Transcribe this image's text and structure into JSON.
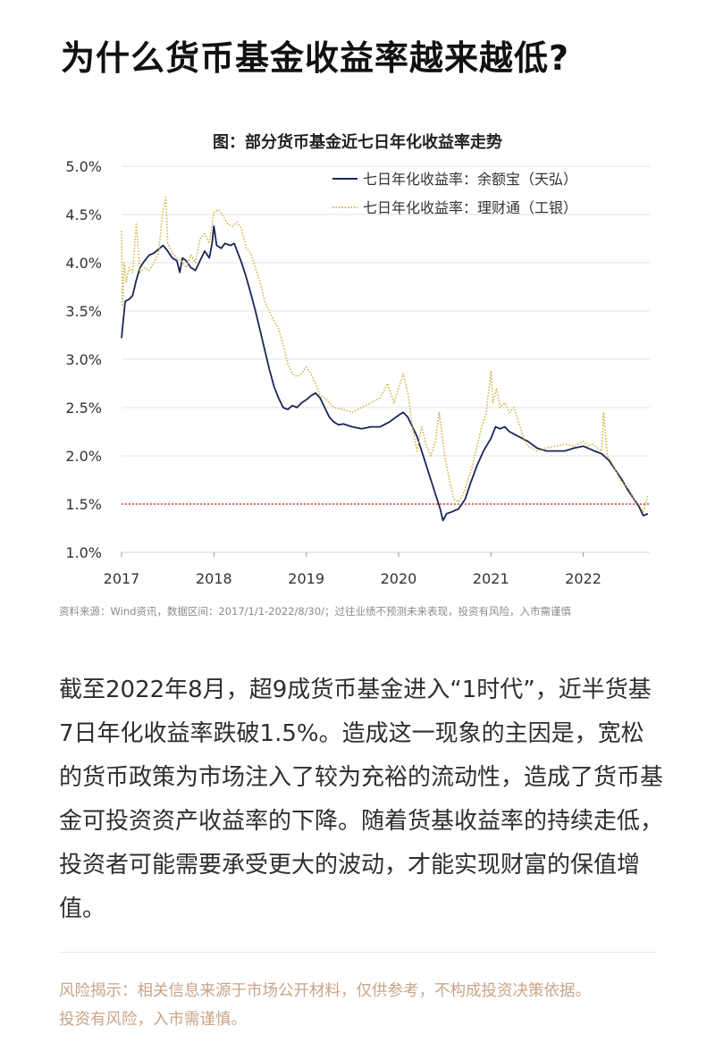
{
  "headline": "为什么货币基金收益率越来越低?",
  "source_note": "资料来源：Wind资讯，数据区间：2017/1/1-2022/8/30/；过往业绩不预测未来表现，投资有风险，入市需谨慎",
  "body_text": "截至2022年8月，超9成货币基金进入“1时代”，近半货基7日年化收益率跌破1.5%。造成这一现象的主因是，宽松的货币政策为市场注入了较为充裕的流动性，造成了货币基金可投资资产收益率的下降。随着货基收益率的持续走低，投资者可能需要承受更大的波动，才能实现财富的保值增值。",
  "risk_note": "风险揭示：相关信息来源于市场公开材料，仅供参考，不构成投资决策依据。投资有风险，入市需谨慎。",
  "chart_data": {
    "type": "line",
    "title": "图：部分货币基金近七日年化收益率走势",
    "xlabel": "",
    "ylabel": "",
    "xlim": [
      2017.0,
      2022.72
    ],
    "ylim": [
      1.0,
      5.0
    ],
    "x_ticks": [
      "2017",
      "2018",
      "2019",
      "2020",
      "2021",
      "2022"
    ],
    "y_ticks": [
      "5.0%",
      "4.5%",
      "4.0%",
      "3.5%",
      "3.0%",
      "2.5%",
      "2.0%",
      "1.5%",
      "1.0%"
    ],
    "grid": "horizontal",
    "legend_position": "top-right",
    "reference_line": {
      "value": 1.5,
      "color": "#cc2222",
      "style": "dotted"
    },
    "series": [
      {
        "name": "七日年化收益率：余额宝（天弘）",
        "color": "#1c2557",
        "style": "solid",
        "points": [
          [
            2017.0,
            3.22
          ],
          [
            2017.02,
            3.42
          ],
          [
            2017.04,
            3.6
          ],
          [
            2017.08,
            3.62
          ],
          [
            2017.12,
            3.66
          ],
          [
            2017.16,
            3.82
          ],
          [
            2017.2,
            3.95
          ],
          [
            2017.25,
            4.02
          ],
          [
            2017.3,
            4.08
          ],
          [
            2017.35,
            4.1
          ],
          [
            2017.4,
            4.14
          ],
          [
            2017.45,
            4.18
          ],
          [
            2017.5,
            4.12
          ],
          [
            2017.55,
            4.05
          ],
          [
            2017.6,
            4.02
          ],
          [
            2017.63,
            3.9
          ],
          [
            2017.66,
            4.05
          ],
          [
            2017.7,
            4.02
          ],
          [
            2017.75,
            3.95
          ],
          [
            2017.8,
            3.92
          ],
          [
            2017.85,
            4.02
          ],
          [
            2017.9,
            4.12
          ],
          [
            2017.95,
            4.05
          ],
          [
            2017.98,
            4.2
          ],
          [
            2018.0,
            4.38
          ],
          [
            2018.03,
            4.18
          ],
          [
            2018.08,
            4.15
          ],
          [
            2018.12,
            4.2
          ],
          [
            2018.18,
            4.18
          ],
          [
            2018.22,
            4.2
          ],
          [
            2018.26,
            4.1
          ],
          [
            2018.3,
            4.0
          ],
          [
            2018.35,
            3.85
          ],
          [
            2018.4,
            3.68
          ],
          [
            2018.45,
            3.5
          ],
          [
            2018.5,
            3.3
          ],
          [
            2018.55,
            3.1
          ],
          [
            2018.6,
            2.9
          ],
          [
            2018.65,
            2.72
          ],
          [
            2018.7,
            2.6
          ],
          [
            2018.75,
            2.5
          ],
          [
            2018.8,
            2.48
          ],
          [
            2018.85,
            2.52
          ],
          [
            2018.9,
            2.5
          ],
          [
            2018.95,
            2.55
          ],
          [
            2019.0,
            2.58
          ],
          [
            2019.05,
            2.62
          ],
          [
            2019.1,
            2.65
          ],
          [
            2019.15,
            2.6
          ],
          [
            2019.2,
            2.5
          ],
          [
            2019.25,
            2.4
          ],
          [
            2019.3,
            2.35
          ],
          [
            2019.35,
            2.32
          ],
          [
            2019.4,
            2.33
          ],
          [
            2019.5,
            2.3
          ],
          [
            2019.6,
            2.28
          ],
          [
            2019.7,
            2.3
          ],
          [
            2019.8,
            2.3
          ],
          [
            2019.9,
            2.35
          ],
          [
            2020.0,
            2.42
          ],
          [
            2020.05,
            2.45
          ],
          [
            2020.1,
            2.4
          ],
          [
            2020.15,
            2.3
          ],
          [
            2020.2,
            2.2
          ],
          [
            2020.25,
            2.05
          ],
          [
            2020.3,
            1.9
          ],
          [
            2020.35,
            1.75
          ],
          [
            2020.4,
            1.6
          ],
          [
            2020.45,
            1.45
          ],
          [
            2020.48,
            1.33
          ],
          [
            2020.52,
            1.4
          ],
          [
            2020.58,
            1.42
          ],
          [
            2020.65,
            1.45
          ],
          [
            2020.72,
            1.55
          ],
          [
            2020.78,
            1.72
          ],
          [
            2020.85,
            1.9
          ],
          [
            2020.92,
            2.05
          ],
          [
            2021.0,
            2.18
          ],
          [
            2021.05,
            2.3
          ],
          [
            2021.1,
            2.28
          ],
          [
            2021.15,
            2.3
          ],
          [
            2021.2,
            2.25
          ],
          [
            2021.3,
            2.2
          ],
          [
            2021.4,
            2.15
          ],
          [
            2021.5,
            2.08
          ],
          [
            2021.6,
            2.05
          ],
          [
            2021.7,
            2.05
          ],
          [
            2021.8,
            2.05
          ],
          [
            2021.9,
            2.08
          ],
          [
            2022.0,
            2.1
          ],
          [
            2022.05,
            2.08
          ],
          [
            2022.12,
            2.05
          ],
          [
            2022.2,
            2.02
          ],
          [
            2022.28,
            1.95
          ],
          [
            2022.35,
            1.85
          ],
          [
            2022.42,
            1.75
          ],
          [
            2022.48,
            1.65
          ],
          [
            2022.55,
            1.55
          ],
          [
            2022.6,
            1.48
          ],
          [
            2022.65,
            1.38
          ],
          [
            2022.7,
            1.4
          ]
        ]
      },
      {
        "name": "七日年化收益率：理财通（工银）",
        "color": "#d4b54a",
        "style": "dotted",
        "points": [
          [
            2017.0,
            4.33
          ],
          [
            2017.01,
            3.55
          ],
          [
            2017.03,
            4.0
          ],
          [
            2017.05,
            3.8
          ],
          [
            2017.08,
            3.95
          ],
          [
            2017.12,
            3.9
          ],
          [
            2017.16,
            4.4
          ],
          [
            2017.2,
            3.9
          ],
          [
            2017.25,
            3.95
          ],
          [
            2017.3,
            3.92
          ],
          [
            2017.35,
            4.0
          ],
          [
            2017.4,
            4.1
          ],
          [
            2017.45,
            4.55
          ],
          [
            2017.48,
            4.68
          ],
          [
            2017.5,
            4.2
          ],
          [
            2017.55,
            4.1
          ],
          [
            2017.6,
            4.05
          ],
          [
            2017.65,
            4.02
          ],
          [
            2017.7,
            3.95
          ],
          [
            2017.75,
            4.08
          ],
          [
            2017.8,
            4.0
          ],
          [
            2017.85,
            4.25
          ],
          [
            2017.9,
            4.3
          ],
          [
            2017.95,
            4.2
          ],
          [
            2018.0,
            4.52
          ],
          [
            2018.05,
            4.55
          ],
          [
            2018.1,
            4.48
          ],
          [
            2018.15,
            4.4
          ],
          [
            2018.2,
            4.38
          ],
          [
            2018.25,
            4.42
          ],
          [
            2018.3,
            4.35
          ],
          [
            2018.35,
            4.15
          ],
          [
            2018.4,
            4.1
          ],
          [
            2018.45,
            3.95
          ],
          [
            2018.5,
            3.8
          ],
          [
            2018.55,
            3.6
          ],
          [
            2018.6,
            3.5
          ],
          [
            2018.65,
            3.4
          ],
          [
            2018.7,
            3.32
          ],
          [
            2018.75,
            3.15
          ],
          [
            2018.8,
            2.95
          ],
          [
            2018.85,
            2.85
          ],
          [
            2018.9,
            2.82
          ],
          [
            2018.95,
            2.85
          ],
          [
            2019.0,
            2.92
          ],
          [
            2019.05,
            2.85
          ],
          [
            2019.1,
            2.75
          ],
          [
            2019.15,
            2.62
          ],
          [
            2019.2,
            2.6
          ],
          [
            2019.25,
            2.55
          ],
          [
            2019.3,
            2.5
          ],
          [
            2019.4,
            2.48
          ],
          [
            2019.5,
            2.45
          ],
          [
            2019.6,
            2.5
          ],
          [
            2019.7,
            2.55
          ],
          [
            2019.8,
            2.6
          ],
          [
            2019.88,
            2.75
          ],
          [
            2019.95,
            2.55
          ],
          [
            2020.05,
            2.85
          ],
          [
            2020.1,
            2.65
          ],
          [
            2020.15,
            2.3
          ],
          [
            2020.2,
            2.05
          ],
          [
            2020.25,
            2.3
          ],
          [
            2020.3,
            2.1
          ],
          [
            2020.35,
            2.0
          ],
          [
            2020.4,
            2.15
          ],
          [
            2020.44,
            2.45
          ],
          [
            2020.5,
            2.0
          ],
          [
            2020.55,
            1.75
          ],
          [
            2020.6,
            1.55
          ],
          [
            2020.65,
            1.52
          ],
          [
            2020.7,
            1.6
          ],
          [
            2020.75,
            1.75
          ],
          [
            2020.8,
            1.9
          ],
          [
            2020.85,
            2.1
          ],
          [
            2020.9,
            2.3
          ],
          [
            2020.95,
            2.45
          ],
          [
            2021.0,
            2.88
          ],
          [
            2021.02,
            2.55
          ],
          [
            2021.06,
            2.7
          ],
          [
            2021.1,
            2.5
          ],
          [
            2021.15,
            2.55
          ],
          [
            2021.2,
            2.45
          ],
          [
            2021.25,
            2.5
          ],
          [
            2021.3,
            2.35
          ],
          [
            2021.35,
            2.2
          ],
          [
            2021.4,
            2.1
          ],
          [
            2021.5,
            2.05
          ],
          [
            2021.6,
            2.08
          ],
          [
            2021.7,
            2.1
          ],
          [
            2021.8,
            2.12
          ],
          [
            2021.9,
            2.1
          ],
          [
            2022.0,
            2.15
          ],
          [
            2022.05,
            2.1
          ],
          [
            2022.1,
            2.12
          ],
          [
            2022.2,
            2.05
          ],
          [
            2022.22,
            2.45
          ],
          [
            2022.26,
            2.0
          ],
          [
            2022.3,
            1.95
          ],
          [
            2022.35,
            1.85
          ],
          [
            2022.4,
            1.75
          ],
          [
            2022.45,
            1.7
          ],
          [
            2022.5,
            1.65
          ],
          [
            2022.55,
            1.55
          ],
          [
            2022.6,
            1.5
          ],
          [
            2022.65,
            1.42
          ],
          [
            2022.7,
            1.6
          ]
        ]
      }
    ]
  }
}
